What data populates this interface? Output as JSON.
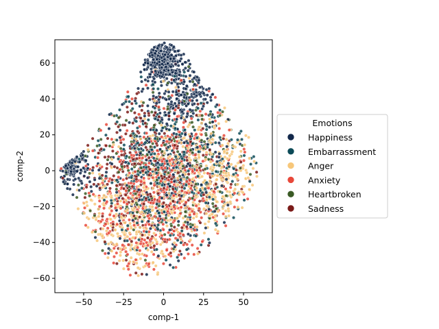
{
  "chart_data": {
    "type": "scatter",
    "title": "",
    "xlabel": "comp-1",
    "ylabel": "comp-2",
    "xlim": [
      -68,
      68
    ],
    "ylim": [
      -68,
      73
    ],
    "xticks": [
      -50,
      -25,
      0,
      25,
      50
    ],
    "yticks": [
      -60,
      -40,
      -20,
      0,
      20,
      40,
      60
    ],
    "xtick_labels": [
      "−50",
      "−25",
      "0",
      "25",
      "50"
    ],
    "ytick_labels": [
      "−60",
      "−40",
      "−20",
      "0",
      "20",
      "40",
      "60"
    ],
    "grid": false,
    "legend": {
      "title": "Emotions",
      "placement": "center-right, outside plot area"
    },
    "series": [
      {
        "name": "Happiness",
        "color": "#12284a",
        "clusters": [
          {
            "cx": 0,
            "cy": 62,
            "sx": 7,
            "sy": 6,
            "n": 320
          },
          {
            "cx": 12,
            "cy": 42,
            "sx": 12,
            "sy": 10,
            "n": 220
          },
          {
            "cx": -58,
            "cy": 2,
            "sx": 5,
            "sy": 5,
            "n": 120
          },
          {
            "cx": 0,
            "cy": 0,
            "sx": 26,
            "sy": 25,
            "n": 260
          }
        ]
      },
      {
        "name": "Embarrassment",
        "color": "#0c4a57",
        "clusters": [
          {
            "cx": 5,
            "cy": 0,
            "sx": 25,
            "sy": 22,
            "n": 420
          }
        ]
      },
      {
        "name": "Anger",
        "color": "#f7c77a",
        "clusters": [
          {
            "cx": 30,
            "cy": -5,
            "sx": 16,
            "sy": 14,
            "n": 300
          },
          {
            "cx": -22,
            "cy": -30,
            "sx": 16,
            "sy": 14,
            "n": 300
          },
          {
            "cx": 5,
            "cy": 0,
            "sx": 25,
            "sy": 22,
            "n": 180
          }
        ]
      },
      {
        "name": "Anxiety",
        "color": "#e8483a",
        "clusters": [
          {
            "cx": -10,
            "cy": -20,
            "sx": 22,
            "sy": 20,
            "n": 420
          },
          {
            "cx": 10,
            "cy": 10,
            "sx": 22,
            "sy": 20,
            "n": 200
          }
        ]
      },
      {
        "name": "Heartbroken",
        "color": "#3a5a25",
        "clusters": [
          {
            "cx": 0,
            "cy": 0,
            "sx": 26,
            "sy": 24,
            "n": 260
          }
        ]
      },
      {
        "name": "Sadness",
        "color": "#7a1a18",
        "clusters": [
          {
            "cx": -5,
            "cy": 0,
            "sx": 24,
            "sy": 24,
            "n": 380
          }
        ]
      }
    ]
  }
}
